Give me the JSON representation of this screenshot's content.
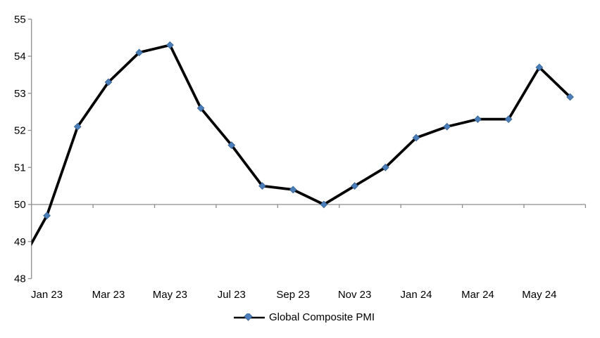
{
  "chart_data": {
    "type": "line",
    "title": "",
    "series": [
      {
        "name": "Global Composite PMI",
        "categories": [
          "Jan 23",
          "Feb 23",
          "Mar 23",
          "Apr 23",
          "May 23",
          "Jun 23",
          "Jul 23",
          "Aug 23",
          "Sep 23",
          "Oct 23",
          "Nov 23",
          "Dec 23",
          "Jan 24",
          "Feb 24",
          "Mar 24",
          "Apr 24",
          "May 24",
          "Jun 24"
        ],
        "values": [
          49.7,
          52.1,
          53.3,
          54.1,
          54.3,
          52.6,
          51.6,
          50.5,
          50.4,
          50.0,
          50.5,
          51.0,
          51.8,
          52.1,
          52.3,
          52.3,
          53.7,
          52.9
        ],
        "lead_in": {
          "category": "Dec 22",
          "value": 48.2,
          "clipped_at_left_axis": true
        }
      }
    ],
    "ylim": [
      48,
      55
    ],
    "y_tick_labels": [
      "48",
      "49",
      "50",
      "51",
      "52",
      "53",
      "54",
      "55"
    ],
    "x_labels_shown": [
      "Jan 23",
      "Mar 23",
      "May 23",
      "Jul 23",
      "Sep 23",
      "Nov 23",
      "Jan 24",
      "Mar 24",
      "May 24"
    ],
    "x_label_interval": 2,
    "axis_cross_value": 50,
    "grid": "off",
    "legend": {
      "position": "bottom",
      "label": "Global Composite PMI"
    },
    "colors": {
      "line": "#000000",
      "marker_fill": "#4A7EBB",
      "marker_border": "#38618C",
      "axis": "#8E8E8E",
      "text": "#000000"
    }
  }
}
